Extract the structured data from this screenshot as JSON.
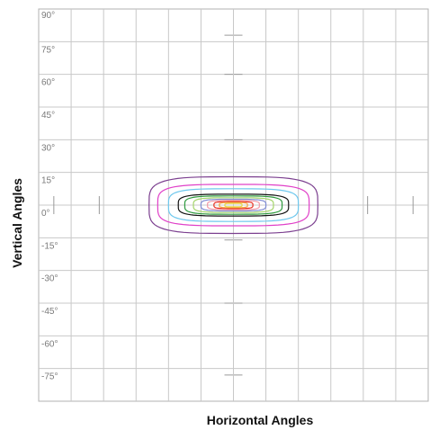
{
  "chart_data": {
    "type": "contour",
    "xlabel": "Horizontal Angles",
    "ylabel": "Vertical Angles",
    "ylim": [
      -90,
      90
    ],
    "y_ticks": [
      "90°",
      "75°",
      "60°",
      "45°",
      "30°",
      "15°",
      "0°",
      "-15°",
      "-30°",
      "-45°",
      "-60°",
      "-75°"
    ],
    "y_tick_values": [
      90,
      75,
      60,
      45,
      30,
      15,
      0,
      -15,
      -30,
      -45,
      -60,
      -75
    ],
    "xlim": [
      -90,
      90
    ],
    "x_gridlines": 11,
    "grid": true,
    "center": [
      0,
      0
    ],
    "contours": [
      {
        "color": "#7b3f8f",
        "hw": 39,
        "hh": 13
      },
      {
        "color": "#e040c8",
        "hw": 35,
        "hh": 9.5
      },
      {
        "color": "#6ec8ee",
        "hw": 30,
        "hh": 7.5
      },
      {
        "color": "#111111",
        "hw": 25.5,
        "hh": 5
      },
      {
        "color": "#2e9a3e",
        "hw": 22.5,
        "hh": 4.2
      },
      {
        "color": "#a4d46a",
        "hw": 18.5,
        "hh": 3.4
      },
      {
        "color": "#7e8cd4",
        "hw": 15,
        "hh": 2.7
      },
      {
        "color": "#f29aa8",
        "hw": 12,
        "hh": 2.1
      },
      {
        "color": "#e83222",
        "hw": 9,
        "hh": 1.6
      },
      {
        "color": "#f3a23a",
        "hw": 6.5,
        "hh": 1.2
      },
      {
        "color": "#e9d84a",
        "hw": 4,
        "hh": 0.8
      }
    ]
  }
}
